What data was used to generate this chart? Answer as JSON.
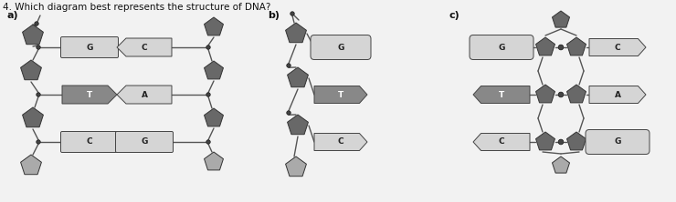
{
  "title": "4. Which diagram best represents the structure of DNA?",
  "bg_color": "#f0f0f0",
  "dark_gray": "#666666",
  "pent_dark": "#777777",
  "pent_light": "#aaaaaa",
  "light_base": "#d8d8d8",
  "dark_base": "#888888",
  "diagram_labels": [
    "a)",
    "b)",
    "c)"
  ],
  "pairs_a": [
    [
      "G",
      "C"
    ],
    [
      "T",
      "A"
    ],
    [
      "C",
      "G"
    ]
  ],
  "pairs_b": [
    "G",
    "T",
    "C"
  ],
  "pairs_c_left": [
    "G",
    "T",
    "C"
  ],
  "pairs_c_right": [
    "C",
    "A",
    "G"
  ]
}
